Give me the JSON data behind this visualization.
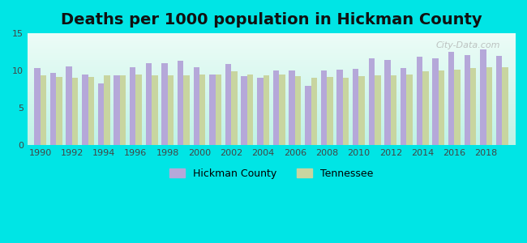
{
  "title": "Deaths per 1000 population in Hickman County",
  "years": [
    1990,
    1991,
    1992,
    1993,
    1994,
    1995,
    1996,
    1997,
    1998,
    1999,
    2000,
    2001,
    2002,
    2003,
    2004,
    2005,
    2006,
    2007,
    2008,
    2009,
    2010,
    2011,
    2012,
    2013,
    2014,
    2015,
    2016,
    2017,
    2018,
    2019
  ],
  "hickman": [
    10.4,
    9.7,
    10.6,
    9.5,
    8.3,
    9.4,
    10.5,
    11.0,
    11.0,
    11.3,
    10.5,
    9.5,
    10.9,
    9.3,
    9.0,
    10.0,
    10.0,
    8.0,
    10.0,
    10.1,
    10.2,
    11.7,
    11.4,
    10.4,
    11.9,
    11.6,
    12.5,
    12.1,
    12.8,
    12.0
  ],
  "tennessee": [
    9.4,
    9.2,
    9.1,
    9.2,
    9.4,
    9.4,
    9.5,
    9.4,
    9.4,
    9.4,
    9.5,
    9.5,
    9.9,
    9.5,
    9.4,
    9.5,
    9.3,
    9.0,
    9.2,
    9.0,
    9.3,
    9.4,
    9.4,
    9.5,
    9.9,
    10.0,
    10.1,
    10.4,
    10.5,
    10.5
  ],
  "hickman_color": "#b5a8d9",
  "tennessee_color": "#c8d5a0",
  "bg_outer": "#00e5e5",
  "bg_plot_top": "#e8f8f5",
  "bg_plot_bottom": "#d0f0ea",
  "ylim": [
    0,
    15
  ],
  "yticks": [
    0,
    5,
    10,
    15
  ],
  "title_fontsize": 14,
  "legend_labels": [
    "Hickman County",
    "Tennessee"
  ]
}
